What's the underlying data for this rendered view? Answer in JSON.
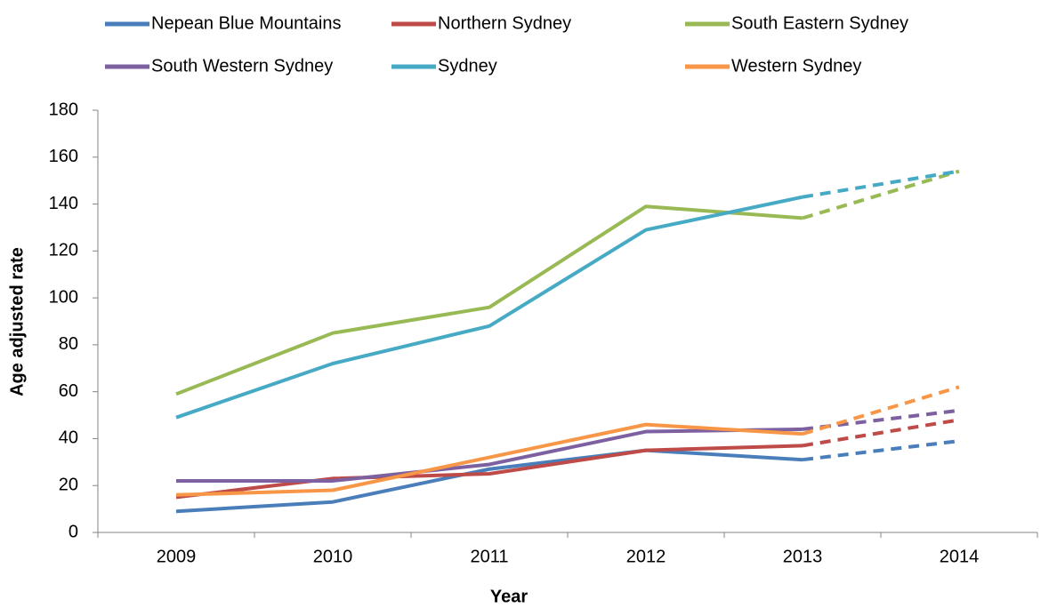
{
  "chart_data": {
    "type": "line",
    "x_label": "Year",
    "y_label": "Age adjusted rate",
    "categories": [
      "2009",
      "2010",
      "2011",
      "2012",
      "2013",
      "2014"
    ],
    "dashed_from": "2013",
    "ylim": [
      0,
      180
    ],
    "yticks": [
      0,
      20,
      40,
      60,
      80,
      100,
      120,
      140,
      160,
      180
    ],
    "legend": "top",
    "series": [
      {
        "name": "Nepean Blue Mountains",
        "color": "#4a7ebb",
        "values": [
          9,
          13,
          27,
          35,
          31,
          39
        ]
      },
      {
        "name": "Northern Sydney",
        "color": "#be4b48",
        "values": [
          15,
          23,
          25,
          35,
          37,
          48
        ]
      },
      {
        "name": "South Eastern Sydney",
        "color": "#98b954",
        "values": [
          59,
          85,
          96,
          139,
          134,
          154
        ]
      },
      {
        "name": "South Western Sydney",
        "color": "#7d60a0",
        "values": [
          22,
          22,
          29,
          43,
          44,
          52
        ]
      },
      {
        "name": "Sydney",
        "color": "#46aac5",
        "values": [
          49,
          72,
          88,
          129,
          143,
          154
        ]
      },
      {
        "name": "Western Sydney",
        "color": "#f79646",
        "values": [
          16,
          18,
          32,
          46,
          42,
          62
        ]
      }
    ]
  }
}
